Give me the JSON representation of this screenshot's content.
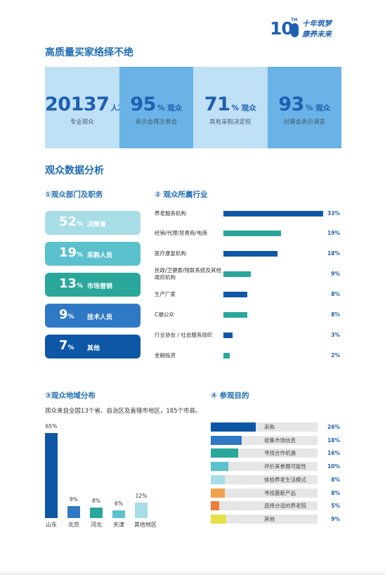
{
  "logo": {
    "ten": "10",
    "th": "TH",
    "slogan_line1": "十年筑梦",
    "slogan_line2": "康养未来"
  },
  "section1": {
    "title": "高质量买家络绎不绝",
    "stats": [
      {
        "num": "20137",
        "unit": "人次",
        "label": "专业观众",
        "bg": "#bfe0f5"
      },
      {
        "num": "95",
        "unit": "% 观众",
        "label": "表示会再次参会",
        "bg": "#69b3e7"
      },
      {
        "num": "71",
        "unit": "% 观众",
        "label": "具有采购决定权",
        "bg": "#bfe0f5"
      },
      {
        "num": "93",
        "unit": "% 观众",
        "label": "对展会表示满意",
        "bg": "#69b3e7"
      }
    ]
  },
  "section2": {
    "title": "观众数据分析"
  },
  "dept": {
    "title": "①观众部门及职务",
    "items": [
      {
        "num": "52",
        "pct": "%",
        "label": "决策者",
        "color": "#a6dde6"
      },
      {
        "num": "19",
        "pct": "%",
        "label": "采购人员",
        "color": "#5bc1cc"
      },
      {
        "num": "13",
        "pct": "%",
        "label": "市场营销",
        "color": "#2aa79b"
      },
      {
        "num": "9",
        "pct": "%",
        "label": "技术人员",
        "color": "#2f78c4"
      },
      {
        "num": "7",
        "pct": "%",
        "label": "其他",
        "color": "#0e57a6"
      }
    ]
  },
  "industry": {
    "title": "② 观众所属行业",
    "items": [
      {
        "label": "养老服务机构",
        "value": 33,
        "display": "33%",
        "color": "#0e57a6"
      },
      {
        "label": "经销/代理/贸易商/电商",
        "value": 19,
        "display": "19%",
        "color": "#2aa79b"
      },
      {
        "label": "医疗康复机构",
        "value": 18,
        "display": "18%",
        "color": "#0e57a6"
      },
      {
        "label": "民政/卫健委/残联系统及其他政府机构",
        "value": 9,
        "display": "9%",
        "color": "#2aa79b"
      },
      {
        "label": "生产厂家",
        "value": 8,
        "display": "8%",
        "color": "#0e57a6"
      },
      {
        "label": "C端公众",
        "value": 8,
        "display": "8%",
        "color": "#2aa79b"
      },
      {
        "label": "行业协会 / 社会服务组织",
        "value": 3,
        "display": "3%",
        "color": "#0e57a6"
      },
      {
        "label": "金融投资",
        "value": 2,
        "display": "2%",
        "color": "#2aa79b"
      }
    ]
  },
  "region": {
    "title": "③观众地域分布",
    "description": "观众来自全国13个省、自治区及直辖市地区，185个市县。",
    "chart_data": {
      "type": "bar",
      "categories": [
        "山东",
        "北京",
        "河北",
        "天津",
        "其他地区"
      ],
      "values": [
        65,
        9,
        8,
        6,
        12
      ],
      "labels": [
        "65%",
        "9%",
        "8%",
        "6%",
        "12%"
      ],
      "colors": [
        "#0e57a6",
        "#2f78c4",
        "#2aa79b",
        "#5bc1cc",
        "#a6dde6"
      ]
    }
  },
  "purpose": {
    "title": "④ 参观目的",
    "chart_data": {
      "type": "bar",
      "categories": [
        "采购",
        "收集市场信息",
        "寻找合作机遇",
        "评价来参展可能性",
        "体验养老生活模式",
        "寻找最新产品",
        "选择合适的养老院",
        "其他"
      ],
      "values": [
        26,
        18,
        16,
        10,
        8,
        8,
        5,
        9
      ],
      "labels": [
        "26%",
        "18%",
        "16%",
        "10%",
        "8%",
        "8%",
        "5%",
        "9%"
      ],
      "colors": [
        "#0e57a6",
        "#2f78c4",
        "#2aa79b",
        "#5bc1cc",
        "#a6dde6",
        "#f0a04b",
        "#ef7d35",
        "#e6e14a"
      ]
    }
  }
}
